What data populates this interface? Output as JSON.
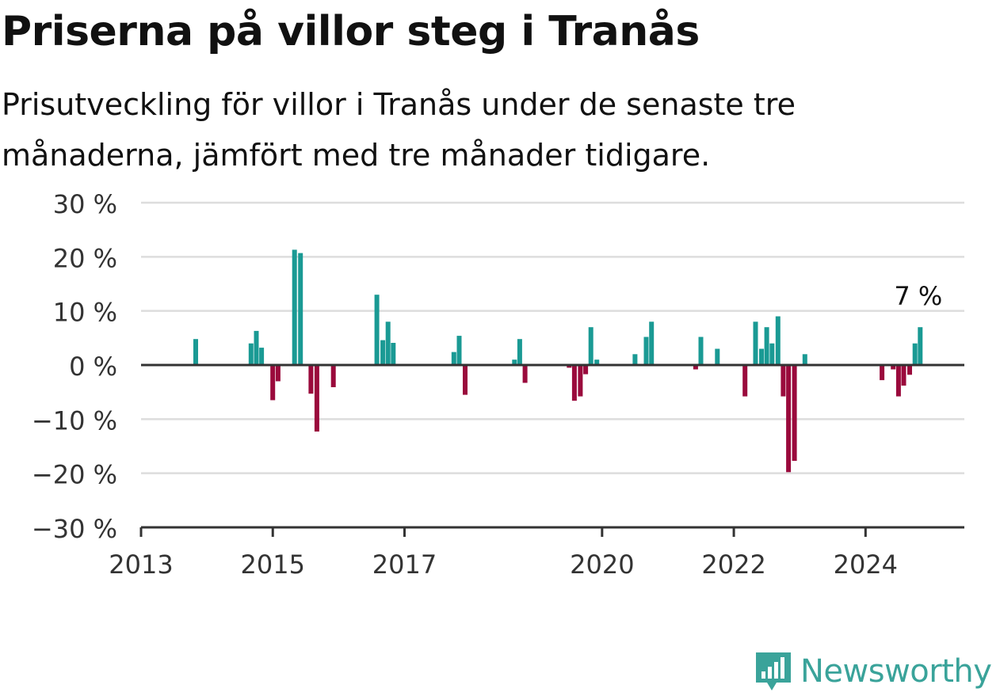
{
  "title": "Priserna på villor steg i Tranås",
  "subtitle": "Prisutveckling för villor i Tranås under de senaste tre månaderna, jämfört med tre månader tidigare.",
  "logo": {
    "text": "Newsworthy",
    "icon": "newsworthy-logo-icon"
  },
  "colors": {
    "positive": "#1a9a94",
    "negative": "#9a0a3c",
    "grid": "#dddddd",
    "axis": "#333333"
  },
  "chart_data": {
    "type": "bar",
    "title": "Priserna på villor steg i Tranås",
    "subtitle": "Prisutveckling för villor i Tranås under de senaste tre månaderna, jämfört med tre månader tidigare.",
    "xlabel": "",
    "ylabel": "",
    "xlim": [
      2013.0,
      2025.5
    ],
    "ylim": [
      -30,
      30
    ],
    "y_ticks": [
      30,
      20,
      10,
      0,
      -10,
      -20,
      -30
    ],
    "y_tick_labels": [
      "30 %",
      "20 %",
      "10 %",
      "0 %",
      "−10 %",
      "−20 %",
      "−30 %"
    ],
    "x_ticks": [
      2013,
      2015,
      2017,
      2020,
      2022,
      2024
    ],
    "x_tick_labels": [
      "2013",
      "2015",
      "2017",
      "2020",
      "2022",
      "2024"
    ],
    "grid": true,
    "annotation": {
      "text": "7 %",
      "x": 2024.8,
      "y": 7
    },
    "series": [
      {
        "x": [
          2013.83,
          2014.67,
          2014.75,
          2014.83,
          2015.0,
          2015.08,
          2015.33,
          2015.42,
          2015.58,
          2015.67,
          2015.92,
          2016.58,
          2016.67,
          2016.75,
          2016.83,
          2017.75,
          2017.83,
          2017.92,
          2018.67,
          2018.75,
          2018.83,
          2019.5,
          2019.58,
          2019.67,
          2019.75,
          2019.83,
          2019.92,
          2020.5,
          2020.67,
          2020.75,
          2021.42,
          2021.5,
          2021.75,
          2022.17,
          2022.33,
          2022.42,
          2022.5,
          2022.58,
          2022.67,
          2022.75,
          2022.83,
          2022.92,
          2023.08,
          2024.25,
          2024.42,
          2024.5,
          2024.58,
          2024.67,
          2024.75,
          2024.83
        ],
        "values": [
          4.8,
          4.0,
          6.3,
          3.2,
          -6.5,
          -3.0,
          21.3,
          20.7,
          -5.3,
          -12.3,
          -4.1,
          13.0,
          4.6,
          8.0,
          4.1,
          2.4,
          5.4,
          -5.5,
          1.0,
          4.8,
          -3.3,
          -0.5,
          -6.6,
          -5.8,
          -1.7,
          7.0,
          1.0,
          2.0,
          5.2,
          8.0,
          -0.8,
          5.2,
          3.0,
          -5.8,
          8.0,
          3.0,
          7.0,
          4.0,
          9.0,
          -5.8,
          -19.8,
          -17.7,
          2.0,
          -2.8,
          -0.8,
          -5.8,
          -3.8,
          -1.8,
          4.0,
          7.0
        ]
      }
    ]
  }
}
